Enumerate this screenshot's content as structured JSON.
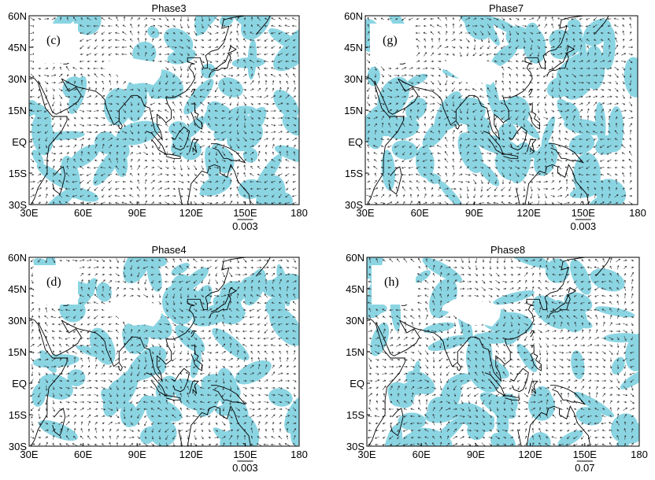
{
  "panels": [
    {
      "title": "Phase3",
      "label": "(c)",
      "scale": "0.003",
      "seed": 3
    },
    {
      "title": "Phase7",
      "label": "(g)",
      "scale": "0.003",
      "seed": 7
    },
    {
      "title": "Phase4",
      "label": "(d)",
      "scale": "0.003",
      "seed": 4
    },
    {
      "title": "Phase8",
      "label": "(h)",
      "scale": "0.07",
      "seed": 8
    }
  ],
  "x_ticks": [
    "30E",
    "60E",
    "90E",
    "120E",
    "150E",
    "180"
  ],
  "y_ticks": [
    "60N",
    "45N",
    "30N",
    "15N",
    "EQ",
    "15S",
    "30S"
  ],
  "colors": {
    "shading": "#7fd1e0",
    "vector": "#333333",
    "coast": "#000000",
    "frame": "#000000",
    "mask": "#ffffff"
  }
}
